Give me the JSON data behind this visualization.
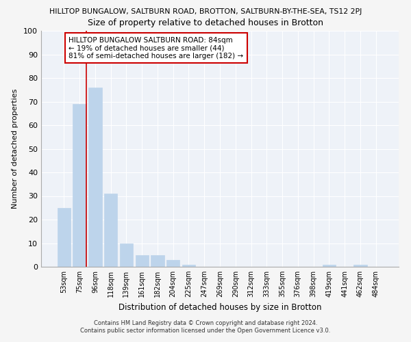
{
  "title_top": "HILLTOP BUNGALOW, SALTBURN ROAD, BROTTON, SALTBURN-BY-THE-SEA, TS12 2PJ",
  "title_main": "Size of property relative to detached houses in Brotton",
  "xlabel": "Distribution of detached houses by size in Brotton",
  "ylabel": "Number of detached properties",
  "categories": [
    "53sqm",
    "75sqm",
    "96sqm",
    "118sqm",
    "139sqm",
    "161sqm",
    "182sqm",
    "204sqm",
    "225sqm",
    "247sqm",
    "269sqm",
    "290sqm",
    "312sqm",
    "333sqm",
    "355sqm",
    "376sqm",
    "398sqm",
    "419sqm",
    "441sqm",
    "462sqm",
    "484sqm"
  ],
  "values": [
    25,
    69,
    76,
    31,
    10,
    5,
    5,
    3,
    1,
    0,
    0,
    0,
    0,
    0,
    0,
    0,
    0,
    1,
    0,
    1,
    0
  ],
  "bar_color": "#bdd4eb",
  "ylim": [
    0,
    100
  ],
  "yticks": [
    0,
    10,
    20,
    30,
    40,
    50,
    60,
    70,
    80,
    90,
    100
  ],
  "annotation_line1": "HILLTOP BUNGALOW SALTBURN ROAD: 84sqm",
  "annotation_line2": "← 19% of detached houses are smaller (44)",
  "annotation_line3": "81% of semi-detached houses are larger (182) →",
  "footer1": "Contains HM Land Registry data © Crown copyright and database right 2024.",
  "footer2": "Contains public sector information licensed under the Open Government Licence v3.0.",
  "background_color": "#f5f5f5",
  "plot_bg_color": "#eef2f8",
  "grid_color": "#ffffff",
  "vline_color": "#cc0000",
  "annotation_box_edge": "#cc0000",
  "vline_x_index": 1.425
}
